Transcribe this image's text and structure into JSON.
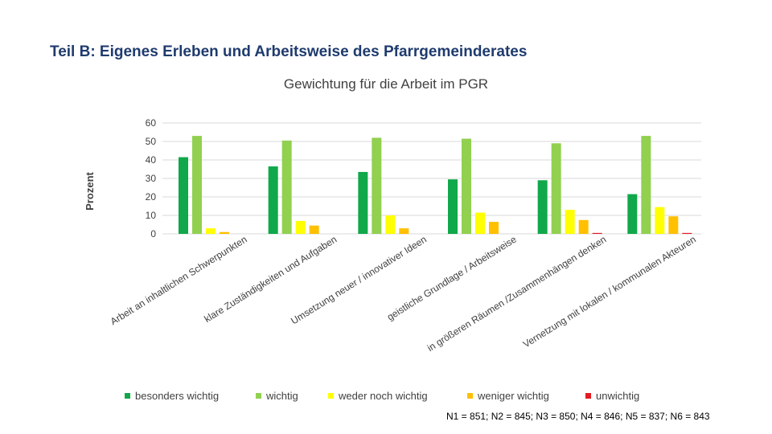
{
  "slide": {
    "heading": "Teil B: Eigenes Erleben und Arbeitsweise des Pfarrgemeinderates",
    "footnote": "N1 = 851; N2 = 845; N3 = 850; N4 = 846; N5 = 837; N6 = 843"
  },
  "chart_data": {
    "type": "bar",
    "title": "Gewichtung für die Arbeit im PGR",
    "ylabel": "Prozent",
    "xlabel": "",
    "ylim": [
      0,
      60
    ],
    "yticks": [
      0,
      10,
      20,
      30,
      40,
      50,
      60
    ],
    "grid": true,
    "legend_position": "bottom",
    "categories": [
      "Arbeit an inhaltlichen Schwerpunkten",
      "klare Zuständigkeiten und Aufgaben",
      "Umsetzung neuer / innovativer Ideen",
      "geistliche Grundlage / Arbeitsweise",
      "in größeren Räumen /Zusammenhängen denken",
      "Vernetzung mit lokalen / kommunalen Akteuren"
    ],
    "series": [
      {
        "name": "besonders wichtig",
        "color": "#10a84a",
        "values": [
          41.5,
          36.5,
          33.5,
          29.5,
          29,
          21.5
        ]
      },
      {
        "name": "wichtig",
        "color": "#92d050",
        "values": [
          53,
          50.5,
          52,
          51.5,
          49,
          53
        ]
      },
      {
        "name": "weder noch wichtig",
        "color": "#ffff00",
        "values": [
          3,
          7,
          10,
          11.5,
          13,
          14.5
        ]
      },
      {
        "name": "weniger wichtig",
        "color": "#ffc000",
        "values": [
          1,
          4.5,
          3,
          6.5,
          7.5,
          9.5
        ]
      },
      {
        "name": "unwichtig",
        "color": "#e31c23",
        "values": [
          0,
          0,
          0,
          0,
          0.5,
          0.5
        ]
      }
    ]
  }
}
